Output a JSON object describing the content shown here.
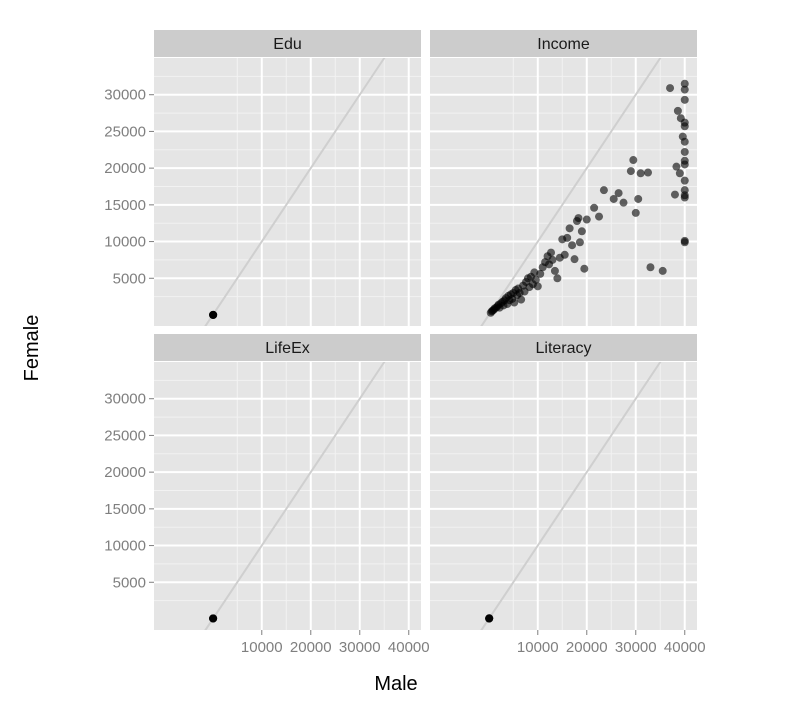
{
  "chart_data": {
    "type": "scatter",
    "xlabel": "Male",
    "ylabel": "Female",
    "xlim": [
      -12000,
      42500
    ],
    "ylim": [
      -1500,
      35000
    ],
    "x_ticks": [
      10000,
      20000,
      30000,
      40000
    ],
    "y_ticks": [
      5000,
      10000,
      15000,
      20000,
      25000,
      30000
    ],
    "x_tick_labels": [
      "10000",
      "20000",
      "30000",
      "40000"
    ],
    "y_tick_labels": [
      "5000",
      "10000",
      "15000",
      "20000",
      "25000",
      "30000"
    ],
    "reference_line": "y = x",
    "grid": true,
    "colors": {
      "panel_bg": "#e5e5e5",
      "strip_bg": "#cccccc",
      "grid": "#ffffff",
      "points": "#000000",
      "reference_line": "#cfcfcf"
    },
    "panels": [
      {
        "name": "Edu",
        "points": [
          [
            50,
            10
          ],
          [
            70,
            15
          ],
          [
            90,
            12
          ],
          [
            60,
            8
          ],
          [
            80,
            13
          ]
        ]
      },
      {
        "name": "Income",
        "points": [
          [
            400,
            300
          ],
          [
            600,
            500
          ],
          [
            800,
            600
          ],
          [
            1000,
            700
          ],
          [
            1200,
            900
          ],
          [
            1500,
            1000
          ],
          [
            1800,
            1200
          ],
          [
            2000,
            1400
          ],
          [
            2200,
            1000
          ],
          [
            2500,
            1600
          ],
          [
            2800,
            1800
          ],
          [
            3000,
            1300
          ],
          [
            3200,
            2000
          ],
          [
            3500,
            2300
          ],
          [
            3800,
            1500
          ],
          [
            4000,
            2600
          ],
          [
            4200,
            2000
          ],
          [
            4500,
            2800
          ],
          [
            4800,
            2200
          ],
          [
            5000,
            3000
          ],
          [
            5200,
            1700
          ],
          [
            5500,
            3400
          ],
          [
            5800,
            2700
          ],
          [
            6000,
            3600
          ],
          [
            6300,
            3000
          ],
          [
            6600,
            2100
          ],
          [
            7000,
            4000
          ],
          [
            7300,
            3200
          ],
          [
            7600,
            4500
          ],
          [
            8000,
            5000
          ],
          [
            8300,
            3800
          ],
          [
            8600,
            5200
          ],
          [
            9000,
            4200
          ],
          [
            9300,
            5800
          ],
          [
            9600,
            4800
          ],
          [
            10000,
            3900
          ],
          [
            10500,
            5600
          ],
          [
            11000,
            6500
          ],
          [
            11500,
            7200
          ],
          [
            12000,
            8000
          ],
          [
            12300,
            6900
          ],
          [
            12700,
            8500
          ],
          [
            13000,
            7500
          ],
          [
            13500,
            6000
          ],
          [
            14000,
            5000
          ],
          [
            14500,
            7800
          ],
          [
            15000,
            10300
          ],
          [
            15500,
            8200
          ],
          [
            16000,
            10500
          ],
          [
            16500,
            11800
          ],
          [
            17000,
            9500
          ],
          [
            17500,
            7600
          ],
          [
            18000,
            12800
          ],
          [
            18300,
            13200
          ],
          [
            18600,
            9900
          ],
          [
            19000,
            11400
          ],
          [
            19500,
            6300
          ],
          [
            20000,
            13000
          ],
          [
            21500,
            14600
          ],
          [
            22500,
            13400
          ],
          [
            23500,
            17000
          ],
          [
            25500,
            15800
          ],
          [
            26500,
            16600
          ],
          [
            27500,
            15300
          ],
          [
            29000,
            19600
          ],
          [
            29500,
            21100
          ],
          [
            30000,
            13900
          ],
          [
            30500,
            15800
          ],
          [
            31000,
            19300
          ],
          [
            32500,
            19400
          ],
          [
            33000,
            6500
          ],
          [
            35500,
            6000
          ],
          [
            37000,
            30900
          ],
          [
            38000,
            16400
          ],
          [
            38300,
            20200
          ],
          [
            38600,
            27800
          ],
          [
            39000,
            19300
          ],
          [
            39200,
            26800
          ],
          [
            39600,
            24300
          ],
          [
            40000,
            31500
          ],
          [
            40000,
            30700
          ],
          [
            40000,
            29300
          ],
          [
            40000,
            26200
          ],
          [
            40000,
            25700
          ],
          [
            40000,
            23600
          ],
          [
            40000,
            21000
          ],
          [
            40000,
            20500
          ],
          [
            40000,
            18300
          ],
          [
            40000,
            17000
          ],
          [
            40000,
            16000
          ],
          [
            40000,
            16300
          ],
          [
            40000,
            10100
          ],
          [
            40000,
            9900
          ],
          [
            40000,
            22200
          ]
        ]
      },
      {
        "name": "LifeEx",
        "points": [
          [
            55,
            58
          ],
          [
            65,
            70
          ],
          [
            75,
            80
          ],
          [
            82,
            87
          ],
          [
            60,
            64
          ]
        ]
      },
      {
        "name": "Literacy",
        "points": [
          [
            60,
            50
          ],
          [
            80,
            75
          ],
          [
            95,
            93
          ],
          [
            99,
            99
          ],
          [
            70,
            62
          ]
        ]
      }
    ]
  }
}
